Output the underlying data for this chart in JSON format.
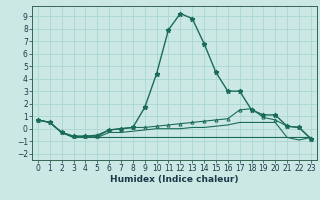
{
  "xlabel": "Humidex (Indice chaleur)",
  "bg_color": "#cce8e4",
  "grid_color": "#aad8d2",
  "line_color": "#1a6b5a",
  "x": [
    0,
    1,
    2,
    3,
    4,
    5,
    6,
    7,
    8,
    9,
    10,
    11,
    12,
    13,
    14,
    15,
    16,
    17,
    18,
    19,
    20,
    21,
    22,
    23
  ],
  "series_main": [
    0.7,
    0.5,
    -0.3,
    -0.6,
    -0.6,
    -0.6,
    -0.1,
    0.0,
    0.1,
    1.7,
    4.4,
    7.9,
    9.2,
    8.8,
    6.8,
    4.5,
    3.0,
    3.0,
    1.5,
    1.1,
    1.1,
    0.2,
    0.1,
    -0.8
  ],
  "series_mid": [
    0.7,
    0.5,
    -0.3,
    -0.6,
    -0.6,
    -0.5,
    -0.1,
    0.0,
    0.1,
    0.1,
    0.2,
    0.3,
    0.4,
    0.5,
    0.6,
    0.7,
    0.8,
    1.5,
    1.6,
    0.9,
    0.7,
    0.2,
    0.1,
    -0.8
  ],
  "series_rise": [
    0.7,
    0.5,
    -0.3,
    -0.7,
    -0.7,
    -0.7,
    -0.3,
    -0.3,
    -0.2,
    -0.1,
    0.0,
    0.0,
    0.0,
    0.1,
    0.1,
    0.2,
    0.3,
    0.5,
    0.5,
    0.5,
    0.5,
    -0.7,
    -0.9,
    -0.7
  ],
  "series_flat": [
    0.7,
    0.5,
    -0.3,
    -0.7,
    -0.7,
    -0.7,
    -0.7,
    -0.7,
    -0.7,
    -0.7,
    -0.7,
    -0.7,
    -0.7,
    -0.7,
    -0.7,
    -0.7,
    -0.7,
    -0.7,
    -0.7,
    -0.7,
    -0.7,
    -0.7,
    -0.7,
    -0.7
  ],
  "ylim": [
    -2.5,
    9.8
  ],
  "xlim": [
    -0.5,
    23.5
  ],
  "yticks": [
    -2,
    -1,
    0,
    1,
    2,
    3,
    4,
    5,
    6,
    7,
    8,
    9
  ],
  "xticks": [
    0,
    1,
    2,
    3,
    4,
    5,
    6,
    7,
    8,
    9,
    10,
    11,
    12,
    13,
    14,
    15,
    16,
    17,
    18,
    19,
    20,
    21,
    22,
    23
  ],
  "tick_fontsize": 5.5,
  "xlabel_fontsize": 6.5
}
